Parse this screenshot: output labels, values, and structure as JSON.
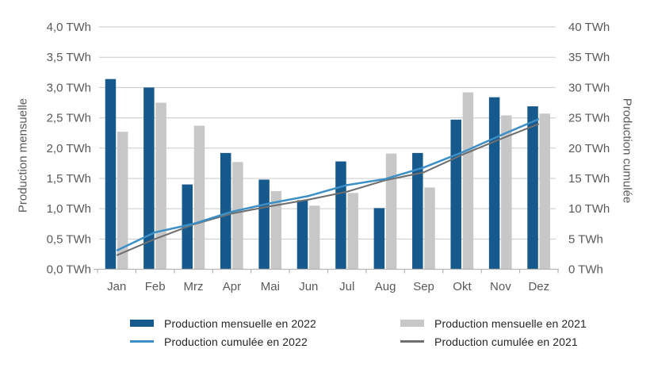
{
  "chart_data": {
    "type": "bar",
    "subtype": "grouped monthly bars with cumulative lines on secondary axis",
    "categories": [
      "Jan",
      "Feb",
      "Mrz",
      "Apr",
      "Mai",
      "Jun",
      "Jul",
      "Aug",
      "Sep",
      "Okt",
      "Nov",
      "Dez"
    ],
    "series": [
      {
        "name": "Production mensuelle en 2022",
        "type": "bar",
        "axis": "left",
        "color": "#165a8d",
        "values": [
          3.14,
          3.0,
          1.4,
          1.92,
          1.48,
          1.14,
          1.78,
          1.01,
          1.92,
          2.47,
          2.84,
          2.69
        ]
      },
      {
        "name": "Production mensuelle en 2021",
        "type": "bar",
        "axis": "left",
        "color": "#c7c7c7",
        "values": [
          2.27,
          2.75,
          2.37,
          1.77,
          1.29,
          1.05,
          1.26,
          1.91,
          1.35,
          2.92,
          2.54,
          2.57
        ]
      },
      {
        "name": "Production cumulée en 2022",
        "type": "line",
        "axis": "right",
        "color": "#3b8fc6",
        "values": [
          3.1,
          6.1,
          7.5,
          9.5,
          10.9,
          12.1,
          13.9,
          14.9,
          16.8,
          19.3,
          22.1,
          24.8
        ]
      },
      {
        "name": "Production cumulée en 2021",
        "type": "line",
        "axis": "right",
        "color": "#6f6f6f",
        "values": [
          2.3,
          5.0,
          7.4,
          9.2,
          10.4,
          11.5,
          12.8,
          14.7,
          16.0,
          18.9,
          21.5,
          24.0
        ]
      }
    ],
    "left_axis": {
      "title": "Production mensuelle",
      "unit": "TWh",
      "min": 0,
      "max": 4,
      "tick_values": [
        0,
        0.5,
        1,
        1.5,
        2,
        2.5,
        3,
        3.5,
        4
      ],
      "tick_labels": [
        "0,0 TWh",
        "0,5 TWh",
        "1,0 TWh",
        "1,5 TWh",
        "2,0 TWh",
        "2,5 TWh",
        "3,0 TWh",
        "3,5 TWh",
        "4,0 TWh"
      ]
    },
    "right_axis": {
      "title": "Production cumulée",
      "unit": "TWh",
      "min": 0,
      "max": 40,
      "tick_values": [
        0,
        5,
        10,
        15,
        20,
        25,
        30,
        35,
        40
      ],
      "tick_labels": [
        "0 TWh",
        "5 TWh",
        "10 TWh",
        "15 TWh",
        "20 TWh",
        "25 TWh",
        "30 TWh",
        "35 TWh",
        "40 TWh"
      ]
    },
    "grid": true,
    "legend_position": "bottom"
  },
  "legend": {
    "columns": [
      {
        "items": [
          {
            "swatch": "rect",
            "color": "#165a8d",
            "label": "Production mensuelle en 2022"
          },
          {
            "swatch": "line",
            "color": "#3b8fc6",
            "label": "Production cumulée en 2022"
          }
        ]
      },
      {
        "items": [
          {
            "swatch": "rect",
            "color": "#c7c7c7",
            "label": "Production mensuelle en 2021"
          },
          {
            "swatch": "line",
            "color": "#6f6f6f",
            "label": "Production cumulée en 2021"
          }
        ]
      }
    ]
  },
  "colors": {
    "background": "#ffffff",
    "grid": "#c9c9c9",
    "axis_line": "#b5b5b5",
    "tick_text": "#595959",
    "legend_text": "#262626"
  }
}
